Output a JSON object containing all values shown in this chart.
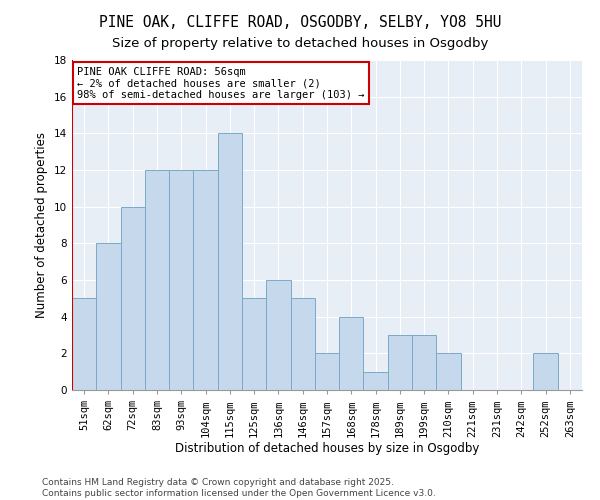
{
  "title": "PINE OAK, CLIFFE ROAD, OSGODBY, SELBY, YO8 5HU",
  "subtitle": "Size of property relative to detached houses in Osgodby",
  "xlabel": "Distribution of detached houses by size in Osgodby",
  "ylabel": "Number of detached properties",
  "bins": [
    "51sqm",
    "62sqm",
    "72sqm",
    "83sqm",
    "93sqm",
    "104sqm",
    "115sqm",
    "125sqm",
    "136sqm",
    "146sqm",
    "157sqm",
    "168sqm",
    "178sqm",
    "189sqm",
    "199sqm",
    "210sqm",
    "221sqm",
    "231sqm",
    "242sqm",
    "252sqm",
    "263sqm"
  ],
  "values": [
    5,
    8,
    10,
    12,
    12,
    12,
    14,
    5,
    6,
    5,
    2,
    4,
    1,
    3,
    3,
    2,
    0,
    0,
    0,
    2,
    0
  ],
  "bar_color": "#c6d9ec",
  "bar_edge_color": "#7aaac8",
  "vline_color": "#cc0000",
  "annotation_text": "PINE OAK CLIFFE ROAD: 56sqm\n← 2% of detached houses are smaller (2)\n98% of semi-detached houses are larger (103) →",
  "annotation_box_color": "#ffffff",
  "annotation_box_edge": "#cc0000",
  "ylim": [
    0,
    18
  ],
  "yticks": [
    0,
    2,
    4,
    6,
    8,
    10,
    12,
    14,
    16,
    18
  ],
  "background_color": "#e8eef6",
  "grid_color": "#ffffff",
  "footer": "Contains HM Land Registry data © Crown copyright and database right 2025.\nContains public sector information licensed under the Open Government Licence v3.0.",
  "title_fontsize": 10.5,
  "subtitle_fontsize": 9.5,
  "xlabel_fontsize": 8.5,
  "ylabel_fontsize": 8.5,
  "tick_fontsize": 7.5,
  "annotation_fontsize": 7.5,
  "footer_fontsize": 6.5
}
